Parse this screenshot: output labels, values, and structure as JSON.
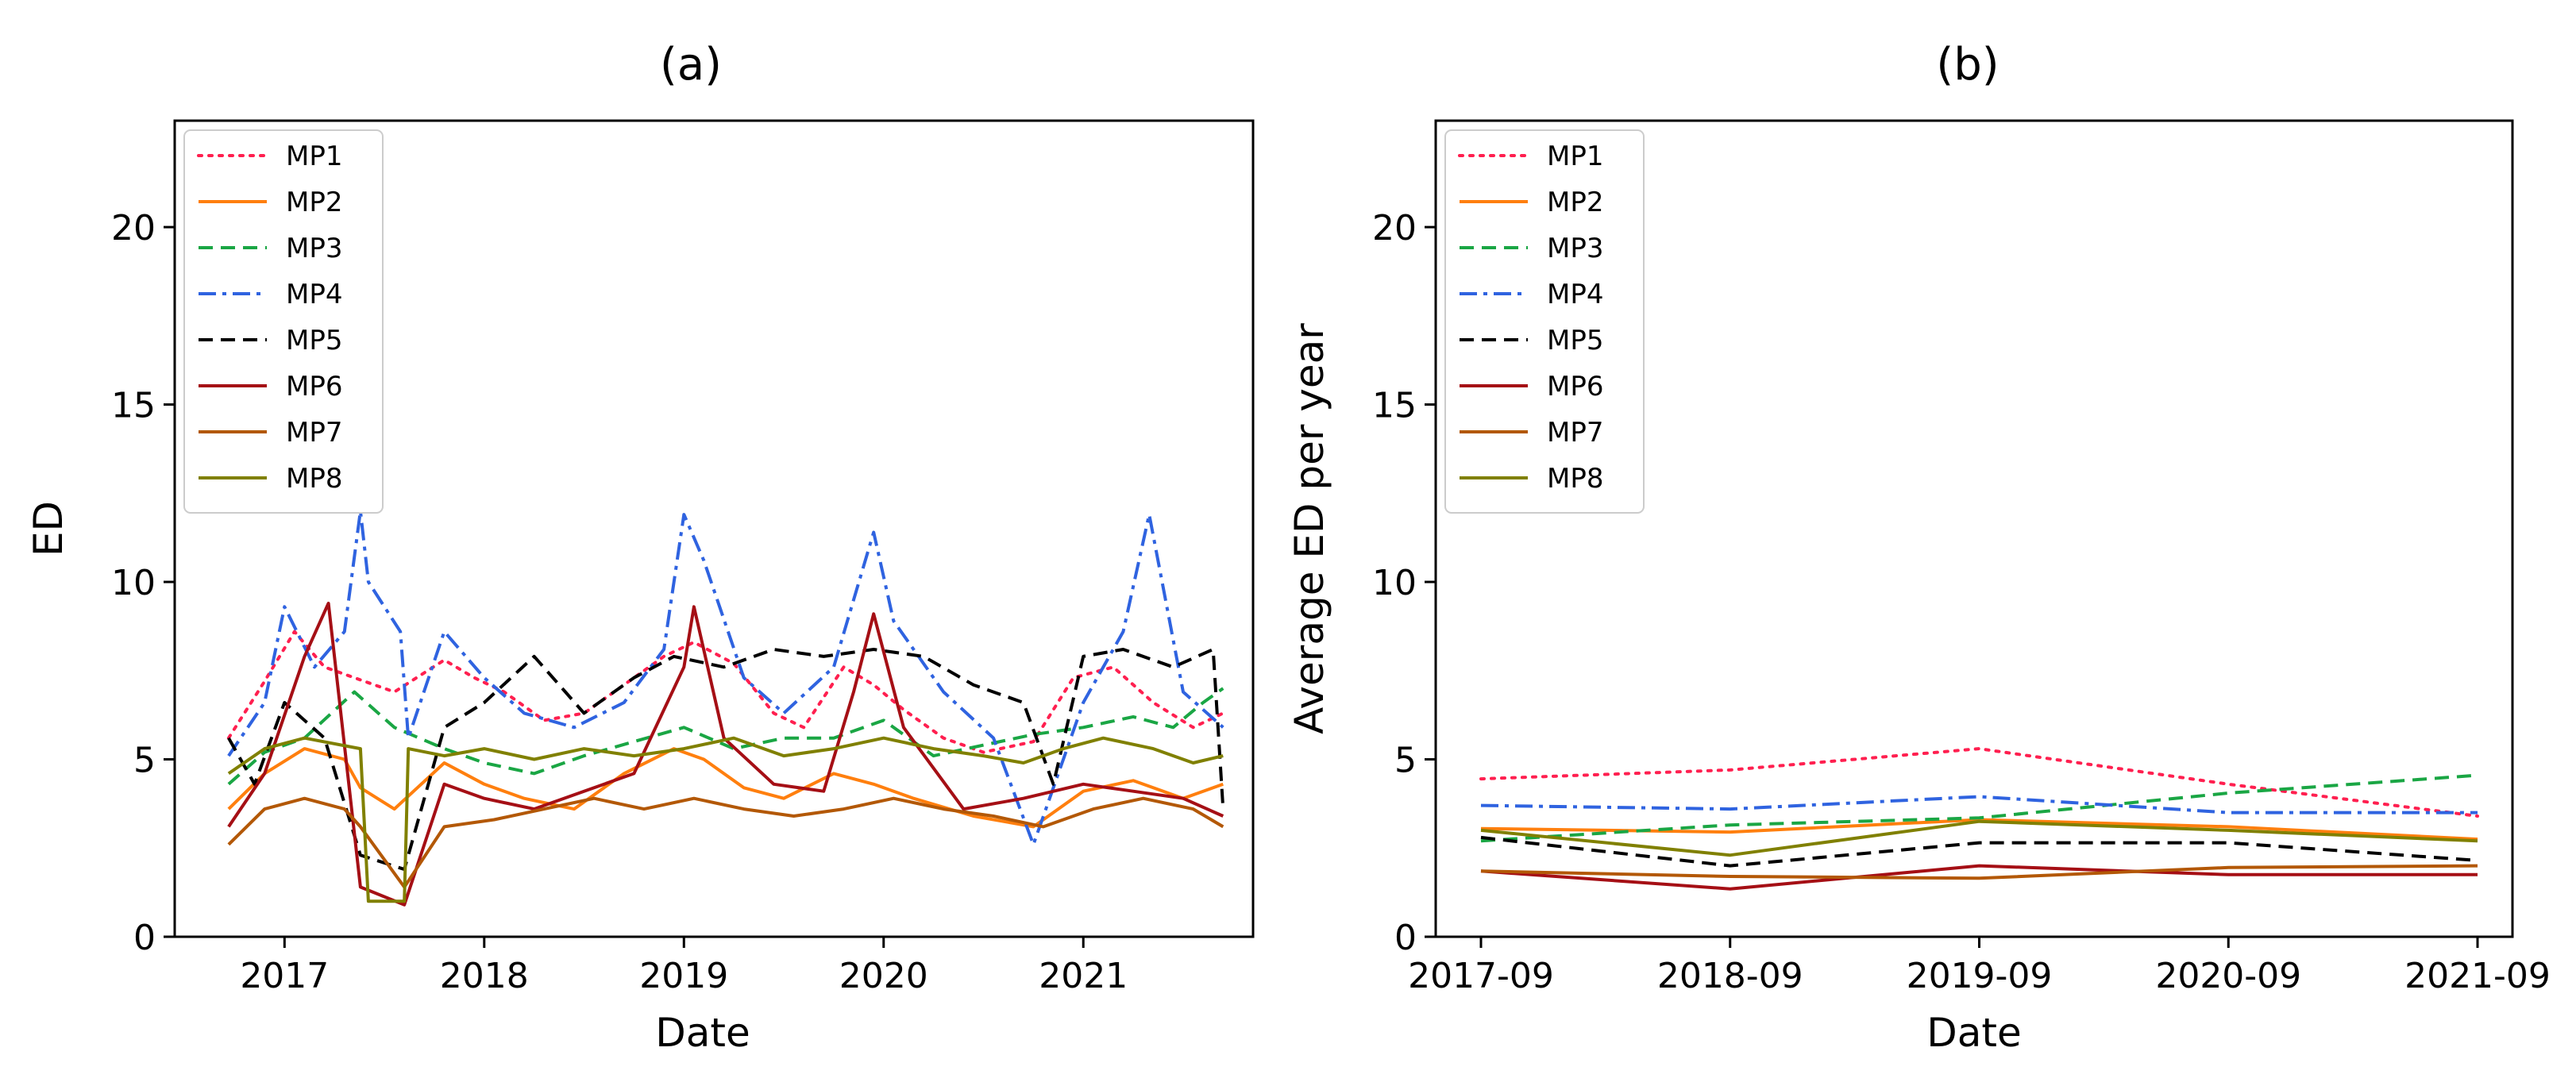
{
  "chart_data": [
    {
      "panel_label": "(a)",
      "type": "line",
      "xlabel": "Date",
      "ylabel": "ED",
      "xlim": [
        2016.45,
        2021.85
      ],
      "ylim": [
        0,
        23
      ],
      "x_ticks": [
        2017,
        2018,
        2019,
        2020,
        2021
      ],
      "x_tick_labels": [
        "2017",
        "2018",
        "2019",
        "2020",
        "2021"
      ],
      "y_ticks": [
        0,
        5,
        10,
        15,
        20
      ],
      "y_tick_labels": [
        "0",
        "5",
        "10",
        "15",
        "20"
      ],
      "legend_position": "top-left",
      "note": "Dense daily time series (approx. 2016.7–2021.7); values approximated from the figure.",
      "series": [
        {
          "name": "MP1",
          "style": "dotted",
          "color": "#ff1f4f",
          "points": [
            [
              2016.72,
              5.6
            ],
            [
              2016.9,
              7.2
            ],
            [
              2017.05,
              8.6
            ],
            [
              2017.2,
              7.6
            ],
            [
              2017.4,
              7.2
            ],
            [
              2017.55,
              6.9
            ],
            [
              2017.8,
              7.8
            ],
            [
              2017.95,
              7.3
            ],
            [
              2018.1,
              6.9
            ],
            [
              2018.3,
              6.1
            ],
            [
              2018.5,
              6.3
            ],
            [
              2018.7,
              7.1
            ],
            [
              2018.9,
              7.9
            ],
            [
              2019.05,
              8.3
            ],
            [
              2019.25,
              7.7
            ],
            [
              2019.45,
              6.3
            ],
            [
              2019.6,
              5.9
            ],
            [
              2019.8,
              7.6
            ],
            [
              2019.95,
              7.1
            ],
            [
              2020.1,
              6.4
            ],
            [
              2020.3,
              5.6
            ],
            [
              2020.5,
              5.2
            ],
            [
              2020.75,
              5.5
            ],
            [
              2020.95,
              7.3
            ],
            [
              2021.15,
              7.6
            ],
            [
              2021.35,
              6.6
            ],
            [
              2021.55,
              5.9
            ],
            [
              2021.7,
              6.3
            ]
          ]
        },
        {
          "name": "MP2",
          "style": "solid",
          "color": "#ff7f0e",
          "points": [
            [
              2016.72,
              3.6
            ],
            [
              2016.9,
              4.6
            ],
            [
              2017.1,
              5.3
            ],
            [
              2017.3,
              5.0
            ],
            [
              2017.38,
              4.2
            ],
            [
              2017.55,
              3.6
            ],
            [
              2017.8,
              4.9
            ],
            [
              2018.0,
              4.3
            ],
            [
              2018.2,
              3.9
            ],
            [
              2018.45,
              3.6
            ],
            [
              2018.7,
              4.6
            ],
            [
              2018.95,
              5.3
            ],
            [
              2019.1,
              5.0
            ],
            [
              2019.3,
              4.2
            ],
            [
              2019.5,
              3.9
            ],
            [
              2019.75,
              4.6
            ],
            [
              2019.95,
              4.3
            ],
            [
              2020.15,
              3.9
            ],
            [
              2020.45,
              3.4
            ],
            [
              2020.75,
              3.1
            ],
            [
              2021.0,
              4.1
            ],
            [
              2021.25,
              4.4
            ],
            [
              2021.5,
              3.9
            ],
            [
              2021.7,
              4.3
            ]
          ]
        },
        {
          "name": "MP3",
          "style": "dashed",
          "color": "#1aa644",
          "points": [
            [
              2016.72,
              4.3
            ],
            [
              2016.9,
              5.2
            ],
            [
              2017.1,
              5.6
            ],
            [
              2017.35,
              6.9
            ],
            [
              2017.55,
              5.9
            ],
            [
              2017.8,
              5.3
            ],
            [
              2018.0,
              4.9
            ],
            [
              2018.25,
              4.6
            ],
            [
              2018.5,
              5.1
            ],
            [
              2018.75,
              5.5
            ],
            [
              2019.0,
              5.9
            ],
            [
              2019.25,
              5.3
            ],
            [
              2019.5,
              5.6
            ],
            [
              2019.75,
              5.6
            ],
            [
              2020.0,
              6.1
            ],
            [
              2020.25,
              5.1
            ],
            [
              2020.5,
              5.4
            ],
            [
              2020.75,
              5.7
            ],
            [
              2021.0,
              5.9
            ],
            [
              2021.25,
              6.2
            ],
            [
              2021.45,
              5.9
            ],
            [
              2021.6,
              6.6
            ],
            [
              2021.7,
              7.0
            ]
          ]
        },
        {
          "name": "MP4",
          "style": "dashdot",
          "color": "#2f63e0",
          "points": [
            [
              2016.72,
              5.1
            ],
            [
              2016.9,
              6.6
            ],
            [
              2017.0,
              9.3
            ],
            [
              2017.15,
              7.6
            ],
            [
              2017.3,
              8.6
            ],
            [
              2017.38,
              12.0
            ],
            [
              2017.42,
              10.0
            ],
            [
              2017.58,
              8.6
            ],
            [
              2017.62,
              5.6
            ],
            [
              2017.8,
              8.6
            ],
            [
              2018.0,
              7.3
            ],
            [
              2018.2,
              6.3
            ],
            [
              2018.45,
              5.9
            ],
            [
              2018.7,
              6.6
            ],
            [
              2018.9,
              8.1
            ],
            [
              2019.0,
              11.9
            ],
            [
              2019.1,
              10.6
            ],
            [
              2019.3,
              7.3
            ],
            [
              2019.5,
              6.3
            ],
            [
              2019.75,
              7.6
            ],
            [
              2019.95,
              11.4
            ],
            [
              2020.05,
              8.9
            ],
            [
              2020.3,
              6.9
            ],
            [
              2020.55,
              5.6
            ],
            [
              2020.75,
              2.6
            ],
            [
              2021.0,
              6.6
            ],
            [
              2021.2,
              8.6
            ],
            [
              2021.33,
              11.9
            ],
            [
              2021.5,
              6.9
            ],
            [
              2021.7,
              5.9
            ]
          ]
        },
        {
          "name": "MP5",
          "style": "dashed",
          "color": "#000000",
          "points": [
            [
              2016.72,
              5.6
            ],
            [
              2016.85,
              4.3
            ],
            [
              2017.0,
              6.6
            ],
            [
              2017.2,
              5.6
            ],
            [
              2017.38,
              2.3
            ],
            [
              2017.6,
              1.9
            ],
            [
              2017.8,
              5.9
            ],
            [
              2018.0,
              6.6
            ],
            [
              2018.25,
              7.9
            ],
            [
              2018.5,
              6.3
            ],
            [
              2018.75,
              7.3
            ],
            [
              2018.95,
              7.9
            ],
            [
              2019.2,
              7.6
            ],
            [
              2019.45,
              8.1
            ],
            [
              2019.7,
              7.9
            ],
            [
              2019.95,
              8.1
            ],
            [
              2020.2,
              7.9
            ],
            [
              2020.45,
              7.1
            ],
            [
              2020.7,
              6.6
            ],
            [
              2020.85,
              4.3
            ],
            [
              2021.0,
              7.9
            ],
            [
              2021.2,
              8.1
            ],
            [
              2021.45,
              7.6
            ],
            [
              2021.65,
              8.1
            ],
            [
              2021.7,
              3.6
            ]
          ]
        },
        {
          "name": "MP6",
          "style": "solid",
          "color": "#a50f15",
          "points": [
            [
              2016.72,
              3.1
            ],
            [
              2016.9,
              4.6
            ],
            [
              2017.1,
              7.9
            ],
            [
              2017.22,
              9.4
            ],
            [
              2017.38,
              1.4
            ],
            [
              2017.6,
              0.9
            ],
            [
              2017.8,
              4.3
            ],
            [
              2018.0,
              3.9
            ],
            [
              2018.25,
              3.6
            ],
            [
              2018.5,
              4.1
            ],
            [
              2018.75,
              4.6
            ],
            [
              2019.0,
              7.6
            ],
            [
              2019.05,
              9.3
            ],
            [
              2019.2,
              5.6
            ],
            [
              2019.45,
              4.3
            ],
            [
              2019.7,
              4.1
            ],
            [
              2019.85,
              6.9
            ],
            [
              2019.95,
              9.1
            ],
            [
              2020.1,
              5.9
            ],
            [
              2020.4,
              3.6
            ],
            [
              2020.7,
              3.9
            ],
            [
              2021.0,
              4.3
            ],
            [
              2021.25,
              4.1
            ],
            [
              2021.5,
              3.9
            ],
            [
              2021.7,
              3.4
            ]
          ]
        },
        {
          "name": "MP7",
          "style": "solid",
          "color": "#b35806",
          "points": [
            [
              2016.72,
              2.6
            ],
            [
              2016.9,
              3.6
            ],
            [
              2017.1,
              3.9
            ],
            [
              2017.3,
              3.6
            ],
            [
              2017.38,
              3.1
            ],
            [
              2017.6,
              1.4
            ],
            [
              2017.8,
              3.1
            ],
            [
              2018.05,
              3.3
            ],
            [
              2018.3,
              3.6
            ],
            [
              2018.55,
              3.9
            ],
            [
              2018.8,
              3.6
            ],
            [
              2019.05,
              3.9
            ],
            [
              2019.3,
              3.6
            ],
            [
              2019.55,
              3.4
            ],
            [
              2019.8,
              3.6
            ],
            [
              2020.05,
              3.9
            ],
            [
              2020.3,
              3.6
            ],
            [
              2020.55,
              3.4
            ],
            [
              2020.8,
              3.1
            ],
            [
              2021.05,
              3.6
            ],
            [
              2021.3,
              3.9
            ],
            [
              2021.55,
              3.6
            ],
            [
              2021.7,
              3.1
            ]
          ]
        },
        {
          "name": "MP8",
          "style": "solid",
          "color": "#808000",
          "points": [
            [
              2016.72,
              4.6
            ],
            [
              2016.9,
              5.3
            ],
            [
              2017.1,
              5.6
            ],
            [
              2017.38,
              5.3
            ],
            [
              2017.42,
              1.0
            ],
            [
              2017.6,
              1.0
            ],
            [
              2017.62,
              5.3
            ],
            [
              2017.8,
              5.1
            ],
            [
              2018.0,
              5.3
            ],
            [
              2018.25,
              5.0
            ],
            [
              2018.5,
              5.3
            ],
            [
              2018.75,
              5.1
            ],
            [
              2019.0,
              5.3
            ],
            [
              2019.25,
              5.6
            ],
            [
              2019.5,
              5.1
            ],
            [
              2019.75,
              5.3
            ],
            [
              2020.0,
              5.6
            ],
            [
              2020.25,
              5.3
            ],
            [
              2020.5,
              5.1
            ],
            [
              2020.7,
              4.9
            ],
            [
              2020.9,
              5.3
            ],
            [
              2021.1,
              5.6
            ],
            [
              2021.35,
              5.3
            ],
            [
              2021.55,
              4.9
            ],
            [
              2021.7,
              5.1
            ]
          ]
        }
      ]
    },
    {
      "panel_label": "(b)",
      "type": "line",
      "xlabel": "Date",
      "ylabel": "Average ED per year",
      "categories": [
        "2017-09",
        "2018-09",
        "2019-09",
        "2020-09",
        "2021-09"
      ],
      "ylim": [
        0,
        23
      ],
      "y_ticks": [
        0,
        5,
        10,
        15,
        20
      ],
      "y_tick_labels": [
        "0",
        "5",
        "10",
        "15",
        "20"
      ],
      "legend_position": "top-left",
      "series": [
        {
          "name": "MP1",
          "style": "dotted",
          "color": "#ff1f4f",
          "values": [
            4.45,
            4.7,
            5.3,
            4.3,
            3.4
          ]
        },
        {
          "name": "MP2",
          "style": "solid",
          "color": "#ff7f0e",
          "values": [
            3.05,
            2.95,
            3.3,
            3.1,
            2.75
          ]
        },
        {
          "name": "MP3",
          "style": "dashed",
          "color": "#1aa644",
          "values": [
            2.7,
            3.15,
            3.35,
            4.05,
            4.55
          ]
        },
        {
          "name": "MP4",
          "style": "dashdot",
          "color": "#2f63e0",
          "values": [
            3.7,
            3.6,
            3.95,
            3.5,
            3.5
          ]
        },
        {
          "name": "MP5",
          "style": "dashed",
          "color": "#000000",
          "values": [
            2.8,
            2.0,
            2.65,
            2.65,
            2.15
          ]
        },
        {
          "name": "MP6",
          "style": "solid",
          "color": "#a50f15",
          "values": [
            1.85,
            1.35,
            2.0,
            1.75,
            1.75
          ]
        },
        {
          "name": "MP7",
          "style": "solid",
          "color": "#b35806",
          "values": [
            1.85,
            1.7,
            1.65,
            1.95,
            2.0
          ]
        },
        {
          "name": "MP8",
          "style": "solid",
          "color": "#808000",
          "values": [
            3.0,
            2.3,
            3.25,
            3.0,
            2.7
          ]
        }
      ]
    }
  ]
}
